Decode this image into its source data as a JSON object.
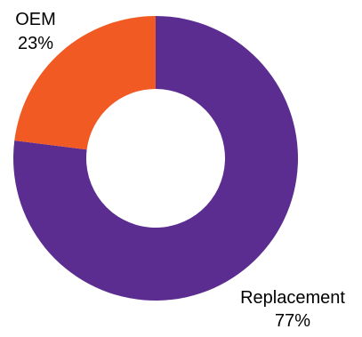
{
  "chart_data": {
    "type": "pie",
    "variant": "donut",
    "title": "",
    "slices": [
      {
        "label": "Replacement",
        "value": 77,
        "percent_label": "77%",
        "color": "#5c2d91"
      },
      {
        "label": "OEM",
        "value": 23,
        "percent_label": "23%",
        "color": "#f15a22"
      }
    ],
    "legend": "none",
    "background": "#ffffff"
  }
}
